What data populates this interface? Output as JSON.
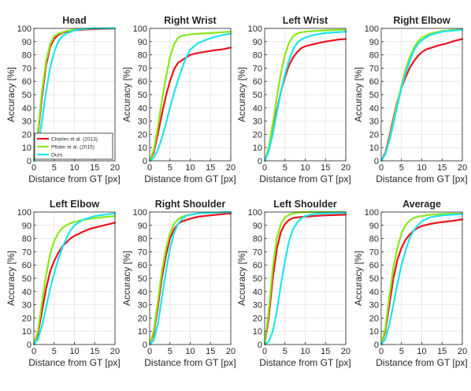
{
  "figure": {
    "xlabel": "Distance from GT [px]",
    "ylabel": "Accuracy [%]",
    "colors": {
      "charles": "#e8141c",
      "pfister": "#88e81a",
      "ours": "#1ee4ef",
      "axis": "#262626",
      "grid": "#e4e4e4"
    }
  },
  "chart_data": [
    {
      "type": "line",
      "title": "Head",
      "xlabel": "Distance from GT [px]",
      "ylabel": "Accuracy [%]",
      "xlim": [
        0,
        20
      ],
      "ylim": [
        0,
        100
      ],
      "grid": true,
      "xticks": [
        0,
        5,
        10,
        15,
        20
      ],
      "yticks": [
        0,
        10,
        20,
        30,
        40,
        50,
        60,
        70,
        80,
        90,
        100
      ],
      "legend": "bottom-left",
      "series": [
        {
          "name": "Charles et al. (2013)",
          "color": "#e8141c",
          "x": [
            0,
            1,
            2,
            3,
            4,
            5,
            6,
            7,
            8,
            10,
            12,
            15,
            20
          ],
          "y": [
            0,
            20,
            48,
            72,
            86,
            92,
            95,
            96.5,
            97.5,
            98.5,
            99,
            99.5,
            100
          ]
        },
        {
          "name": "Pfister et al. (2015)",
          "color": "#88e81a",
          "x": [
            0,
            1,
            2,
            3,
            4,
            5,
            6,
            7,
            8,
            10,
            12,
            15,
            20
          ],
          "y": [
            0,
            22,
            52,
            75,
            88,
            94,
            96,
            97,
            98,
            99,
            99.5,
            100,
            100
          ]
        },
        {
          "name": "Ours",
          "color": "#1ee4ef",
          "x": [
            0,
            1,
            2,
            3,
            4,
            5,
            6,
            7,
            8,
            10,
            12,
            15,
            20
          ],
          "y": [
            0,
            10,
            30,
            52,
            70,
            82,
            90,
            94,
            96,
            98.5,
            99.5,
            100,
            100
          ]
        }
      ]
    },
    {
      "type": "line",
      "title": "Right Wrist",
      "xlabel": "Distance from GT [px]",
      "ylabel": "Accuracy [%]",
      "xlim": [
        0,
        20
      ],
      "ylim": [
        0,
        100
      ],
      "grid": true,
      "xticks": [
        0,
        5,
        10,
        15,
        20
      ],
      "yticks": [
        0,
        10,
        20,
        30,
        40,
        50,
        60,
        70,
        80,
        90,
        100
      ],
      "series": [
        {
          "name": "Charles et al. (2013)",
          "color": "#e8141c",
          "x": [
            0,
            1,
            2,
            3,
            4,
            5,
            6,
            7,
            8,
            9,
            10,
            12,
            14,
            16,
            18,
            20
          ],
          "y": [
            0,
            6,
            20,
            35,
            49,
            60,
            69,
            74,
            76,
            78,
            80,
            81.5,
            82.5,
            83.5,
            84.2,
            85.5
          ]
        },
        {
          "name": "Pfister et al. (2015)",
          "color": "#88e81a",
          "x": [
            0,
            1,
            2,
            3,
            4,
            5,
            6,
            7,
            8,
            9,
            10,
            12,
            15,
            20
          ],
          "y": [
            0,
            8,
            25,
            45,
            63,
            78,
            88,
            93,
            94.5,
            95,
            95.5,
            96,
            96.5,
            97.5
          ]
        },
        {
          "name": "Ours",
          "color": "#1ee4ef",
          "x": [
            0,
            1,
            2,
            3,
            4,
            5,
            6,
            7,
            8,
            9,
            10,
            12,
            14,
            16,
            18,
            20
          ],
          "y": [
            0,
            2,
            8,
            17,
            28,
            40,
            51,
            61,
            70,
            78,
            84,
            89,
            91.5,
            93.5,
            95,
            96
          ]
        }
      ]
    },
    {
      "type": "line",
      "title": "Left Wrist",
      "xlabel": "Distance from GT [px]",
      "ylabel": "Accuracy [%]",
      "xlim": [
        0,
        20
      ],
      "ylim": [
        0,
        100
      ],
      "grid": true,
      "xticks": [
        0,
        5,
        10,
        15,
        20
      ],
      "yticks": [
        0,
        10,
        20,
        30,
        40,
        50,
        60,
        70,
        80,
        90,
        100
      ],
      "series": [
        {
          "name": "Charles et al. (2013)",
          "color": "#e8141c",
          "x": [
            0,
            1,
            2,
            3,
            4,
            5,
            6,
            7,
            8,
            9,
            10,
            12,
            14,
            16,
            18,
            20
          ],
          "y": [
            0,
            8,
            22,
            38,
            52,
            63,
            72,
            78,
            82,
            85,
            86.5,
            88,
            89.5,
            90.5,
            91.5,
            92
          ]
        },
        {
          "name": "Pfister et al. (2015)",
          "color": "#88e81a",
          "x": [
            0,
            1,
            2,
            3,
            4,
            5,
            6,
            7,
            8,
            9,
            10,
            12,
            15,
            20
          ],
          "y": [
            0,
            10,
            28,
            48,
            66,
            80,
            89,
            94,
            96,
            97,
            97.5,
            98,
            98.5,
            99
          ]
        },
        {
          "name": "Ours",
          "color": "#1ee4ef",
          "x": [
            0,
            1,
            2,
            3,
            4,
            5,
            6,
            7,
            8,
            9,
            10,
            12,
            15,
            20
          ],
          "y": [
            0,
            7,
            20,
            36,
            52,
            65,
            76,
            84,
            89,
            91.5,
            93,
            95,
            96.5,
            97.5
          ]
        }
      ]
    },
    {
      "type": "line",
      "title": "Right Elbow",
      "xlabel": "Distance from GT [px]",
      "ylabel": "Accuracy [%]",
      "xlim": [
        0,
        20
      ],
      "ylim": [
        0,
        100
      ],
      "grid": true,
      "xticks": [
        0,
        5,
        10,
        15,
        20
      ],
      "yticks": [
        0,
        10,
        20,
        30,
        40,
        50,
        60,
        70,
        80,
        90,
        100
      ],
      "series": [
        {
          "name": "Charles et al. (2013)",
          "color": "#e8141c",
          "x": [
            0,
            1,
            2,
            3,
            4,
            5,
            6,
            7,
            8,
            9,
            10,
            11,
            12,
            14,
            16,
            18,
            20
          ],
          "y": [
            0,
            6,
            18,
            32,
            45,
            55,
            63,
            70,
            75,
            79,
            82,
            84,
            85,
            87,
            88.5,
            90.5,
            92
          ]
        },
        {
          "name": "Pfister et al. (2015)",
          "color": "#88e81a",
          "x": [
            0,
            1,
            2,
            3,
            4,
            5,
            6,
            7,
            8,
            9,
            10,
            12,
            15,
            20
          ],
          "y": [
            0,
            5,
            16,
            30,
            44,
            57,
            69,
            78,
            85,
            90,
            93,
            96,
            98,
            99.5
          ]
        },
        {
          "name": "Ours",
          "color": "#1ee4ef",
          "x": [
            0,
            1,
            2,
            3,
            4,
            5,
            6,
            7,
            8,
            9,
            10,
            12,
            15,
            20
          ],
          "y": [
            0,
            5,
            15,
            28,
            42,
            55,
            66,
            75,
            83,
            88,
            91,
            95,
            97.5,
            99
          ]
        }
      ]
    },
    {
      "type": "line",
      "title": "Left Elbow",
      "xlabel": "Distance from GT [px]",
      "ylabel": "Accuracy [%]",
      "xlim": [
        0,
        20
      ],
      "ylim": [
        0,
        100
      ],
      "grid": true,
      "xticks": [
        0,
        5,
        10,
        15,
        20
      ],
      "yticks": [
        0,
        10,
        20,
        30,
        40,
        50,
        60,
        70,
        80,
        90,
        100
      ],
      "series": [
        {
          "name": "Charles et al. (2013)",
          "color": "#e8141c",
          "x": [
            0,
            1,
            2,
            3,
            4,
            5,
            6,
            7,
            8,
            9,
            10,
            12,
            14,
            16,
            18,
            20
          ],
          "y": [
            0,
            8,
            25,
            42,
            55,
            63,
            69,
            74,
            77,
            80,
            82,
            85,
            87.5,
            89,
            90.5,
            92
          ]
        },
        {
          "name": "Pfister et al. (2015)",
          "color": "#88e81a",
          "x": [
            0,
            1,
            2,
            3,
            4,
            5,
            6,
            7,
            8,
            9,
            10,
            12,
            15,
            20
          ],
          "y": [
            0,
            10,
            32,
            52,
            68,
            78,
            84,
            88,
            90,
            91.5,
            92.5,
            94,
            95.5,
            97
          ]
        },
        {
          "name": "Ours",
          "color": "#1ee4ef",
          "x": [
            0,
            1,
            2,
            3,
            4,
            5,
            6,
            7,
            8,
            9,
            10,
            12,
            15,
            20
          ],
          "y": [
            0,
            4,
            14,
            28,
            42,
            54,
            64,
            73,
            80,
            86,
            90,
            94,
            97,
            99
          ]
        }
      ]
    },
    {
      "type": "line",
      "title": "Right Shoulder",
      "xlabel": "Distance from GT [px]",
      "ylabel": "Accuracy [%]",
      "xlim": [
        0,
        20
      ],
      "ylim": [
        0,
        100
      ],
      "grid": true,
      "xticks": [
        0,
        5,
        10,
        15,
        20
      ],
      "yticks": [
        0,
        10,
        20,
        30,
        40,
        50,
        60,
        70,
        80,
        90,
        100
      ],
      "series": [
        {
          "name": "Charles et al. (2013)",
          "color": "#e8141c",
          "x": [
            0,
            1,
            2,
            3,
            4,
            5,
            6,
            7,
            8,
            9,
            10,
            12,
            15,
            20
          ],
          "y": [
            0,
            8,
            28,
            50,
            67,
            80,
            87,
            91,
            93,
            94,
            95,
            96.5,
            97.5,
            99
          ]
        },
        {
          "name": "Pfister et al. (2015)",
          "color": "#88e81a",
          "x": [
            0,
            1,
            2,
            3,
            4,
            5,
            6,
            7,
            8,
            9,
            10,
            12,
            15,
            20
          ],
          "y": [
            0,
            10,
            32,
            55,
            72,
            84,
            91,
            94.5,
            96.5,
            97.5,
            98,
            99,
            99.5,
            100
          ]
        },
        {
          "name": "Ours",
          "color": "#1ee4ef",
          "x": [
            0,
            1,
            2,
            3,
            4,
            5,
            6,
            7,
            8,
            9,
            10,
            12,
            15,
            20
          ],
          "y": [
            0,
            3,
            15,
            35,
            55,
            72,
            84,
            91,
            95,
            97,
            98,
            99,
            99.5,
            100
          ]
        }
      ]
    },
    {
      "type": "line",
      "title": "Left Shoulder",
      "xlabel": "Distance from GT [px]",
      "ylabel": "Accuracy [%]",
      "xlim": [
        0,
        20
      ],
      "ylim": [
        0,
        100
      ],
      "grid": true,
      "xticks": [
        0,
        5,
        10,
        15,
        20
      ],
      "yticks": [
        0,
        10,
        20,
        30,
        40,
        50,
        60,
        70,
        80,
        90,
        100
      ],
      "series": [
        {
          "name": "Charles et al. (2013)",
          "color": "#e8141c",
          "x": [
            0,
            1,
            2,
            3,
            4,
            5,
            6,
            7,
            8,
            10,
            12,
            15,
            20
          ],
          "y": [
            0,
            20,
            50,
            72,
            85,
            91,
            94,
            95.5,
            96,
            96.5,
            97,
            97.5,
            98
          ]
        },
        {
          "name": "Pfister et al. (2015)",
          "color": "#88e81a",
          "x": [
            0,
            1,
            2,
            3,
            4,
            5,
            6,
            7,
            8,
            10,
            12,
            15,
            20
          ],
          "y": [
            0,
            25,
            58,
            80,
            91,
            96,
            98,
            99,
            99.5,
            100,
            100,
            100,
            100
          ]
        },
        {
          "name": "Ours",
          "color": "#1ee4ef",
          "x": [
            0,
            1,
            2,
            3,
            4,
            5,
            6,
            7,
            8,
            9,
            10,
            12,
            15,
            20
          ],
          "y": [
            0,
            2,
            10,
            25,
            45,
            63,
            78,
            87,
            92,
            95,
            97,
            98.5,
            99,
            99.5
          ]
        }
      ]
    },
    {
      "type": "line",
      "title": "Average",
      "xlabel": "Distance from GT [px]",
      "ylabel": "Accuracy [%]",
      "xlim": [
        0,
        20
      ],
      "ylim": [
        0,
        100
      ],
      "grid": true,
      "xticks": [
        0,
        5,
        10,
        15,
        20
      ],
      "yticks": [
        0,
        10,
        20,
        30,
        40,
        50,
        60,
        70,
        80,
        90,
        100
      ],
      "series": [
        {
          "name": "Charles et al. (2013)",
          "color": "#e8141c",
          "x": [
            0,
            1,
            2,
            3,
            4,
            5,
            6,
            7,
            8,
            9,
            10,
            12,
            14,
            16,
            18,
            20
          ],
          "y": [
            0,
            10,
            30,
            50,
            64,
            73,
            79,
            83,
            86,
            88,
            89.5,
            91,
            92,
            92.8,
            93.5,
            94.5
          ]
        },
        {
          "name": "Pfister et al. (2015)",
          "color": "#88e81a",
          "x": [
            0,
            1,
            2,
            3,
            4,
            5,
            6,
            7,
            8,
            9,
            10,
            12,
            15,
            20
          ],
          "y": [
            0,
            12,
            36,
            58,
            73,
            84,
            90,
            93.5,
            95.5,
            96.5,
            97,
            98,
            98.5,
            99
          ]
        },
        {
          "name": "Ours",
          "color": "#1ee4ef",
          "x": [
            0,
            1,
            2,
            3,
            4,
            5,
            6,
            7,
            8,
            9,
            10,
            12,
            15,
            20
          ],
          "y": [
            0,
            4,
            15,
            30,
            46,
            60,
            71,
            80,
            86,
            90,
            93,
            96,
            97.5,
            98.5
          ]
        }
      ]
    }
  ]
}
